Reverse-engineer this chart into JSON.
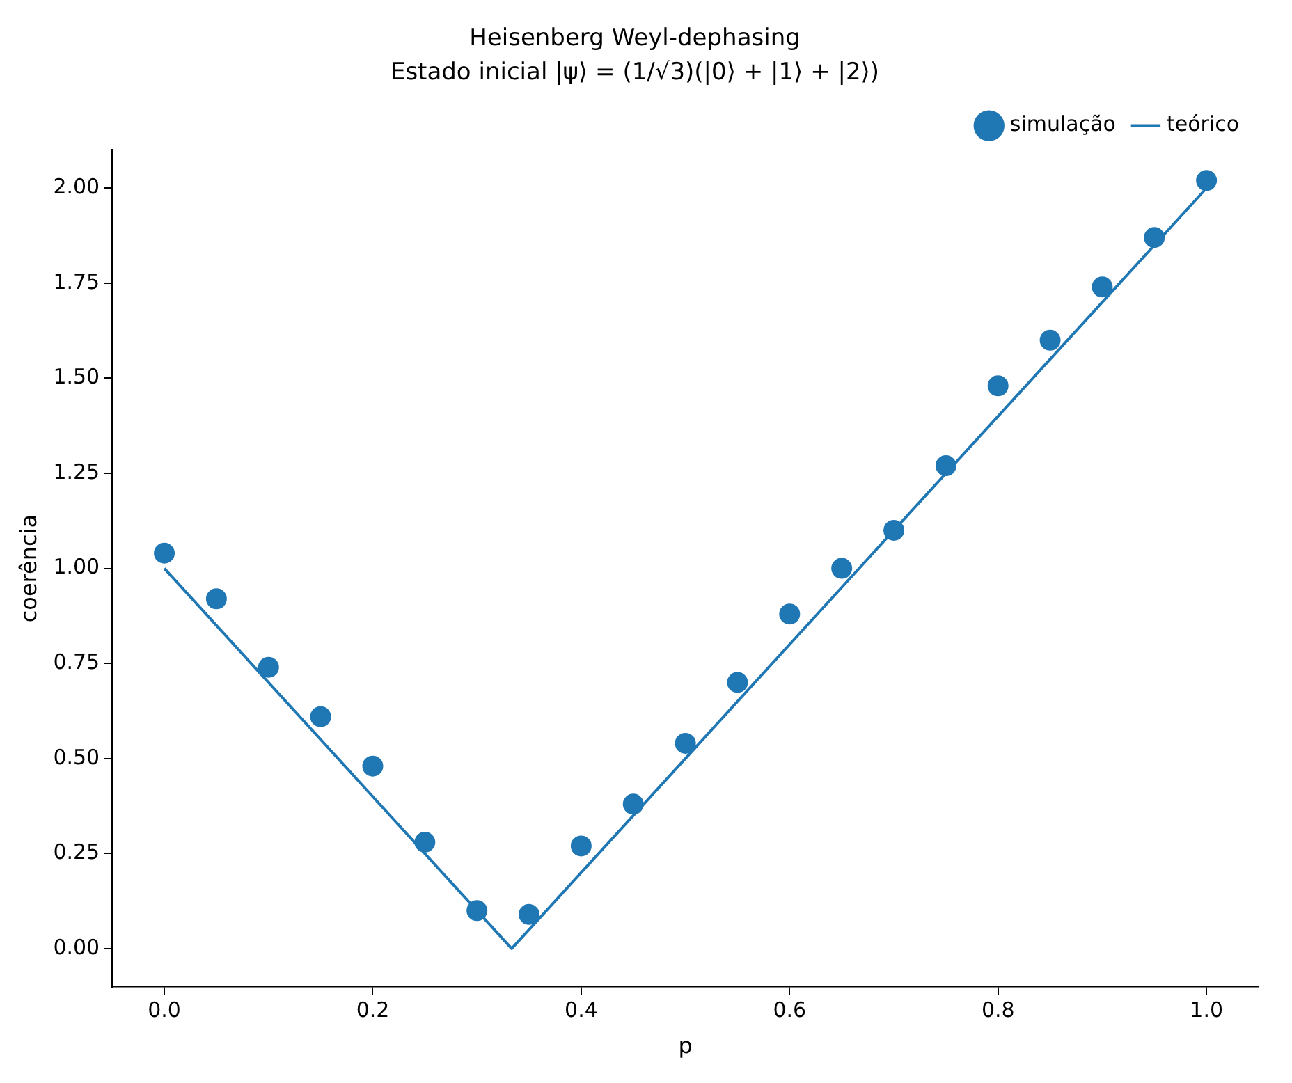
{
  "chart_data": {
    "type": "scatter",
    "title": "Heisenberg Weyl-dephasing",
    "subtitle": "Estado inicial |ψ⟩ = (1/√3)(|0⟩ + |1⟩ + |2⟩)",
    "xlabel": "p",
    "ylabel": "coerência",
    "series": [
      {
        "name": "simulação",
        "type": "scatter",
        "color": "#1f77b4",
        "marker": "circle",
        "x": [
          0,
          0.05,
          0.1,
          0.15,
          0.2,
          0.25,
          0.3,
          0.35,
          0.4,
          0.45,
          0.5,
          0.55,
          0.6,
          0.65,
          0.7,
          0.75,
          0.8,
          0.85,
          0.9,
          0.95,
          1.0
        ],
        "values": [
          1.04,
          0.92,
          0.74,
          0.61,
          0.48,
          0.28,
          0.1,
          0.09,
          0.27,
          0.38,
          0.54,
          0.7,
          0.88,
          1.0,
          1.1,
          1.27,
          1.48,
          1.6,
          1.74,
          1.87,
          2.02
        ]
      },
      {
        "name": "teórico",
        "type": "line",
        "color": "#1f77b4",
        "line_style": "solid",
        "x": [
          0,
          0.3333,
          1.0
        ],
        "values": [
          1.0,
          0.0,
          2.0
        ]
      }
    ],
    "xlim": [
      -0.05,
      1.05
    ],
    "ylim": [
      -0.1,
      2.1
    ],
    "xticks": [
      {
        "value": 0,
        "label": "0.0"
      },
      {
        "value": 0.2,
        "label": "0.2"
      },
      {
        "value": 0.4,
        "label": "0.4"
      },
      {
        "value": 0.6,
        "label": "0.6"
      },
      {
        "value": 0.8,
        "label": "0.8"
      },
      {
        "value": 1.0,
        "label": "1.0"
      }
    ],
    "yticks": [
      {
        "value": 0,
        "label": "0.00"
      },
      {
        "value": 0.25,
        "label": "0.25"
      },
      {
        "value": 0.5,
        "label": "0.50"
      },
      {
        "value": 0.75,
        "label": "0.75"
      },
      {
        "value": 1.0,
        "label": "1.00"
      },
      {
        "value": 1.25,
        "label": "1.25"
      },
      {
        "value": 1.5,
        "label": "1.50"
      },
      {
        "value": 1.75,
        "label": "1.75"
      },
      {
        "value": 2.0,
        "label": "2.00"
      }
    ],
    "grid": false,
    "legend": "top right"
  }
}
